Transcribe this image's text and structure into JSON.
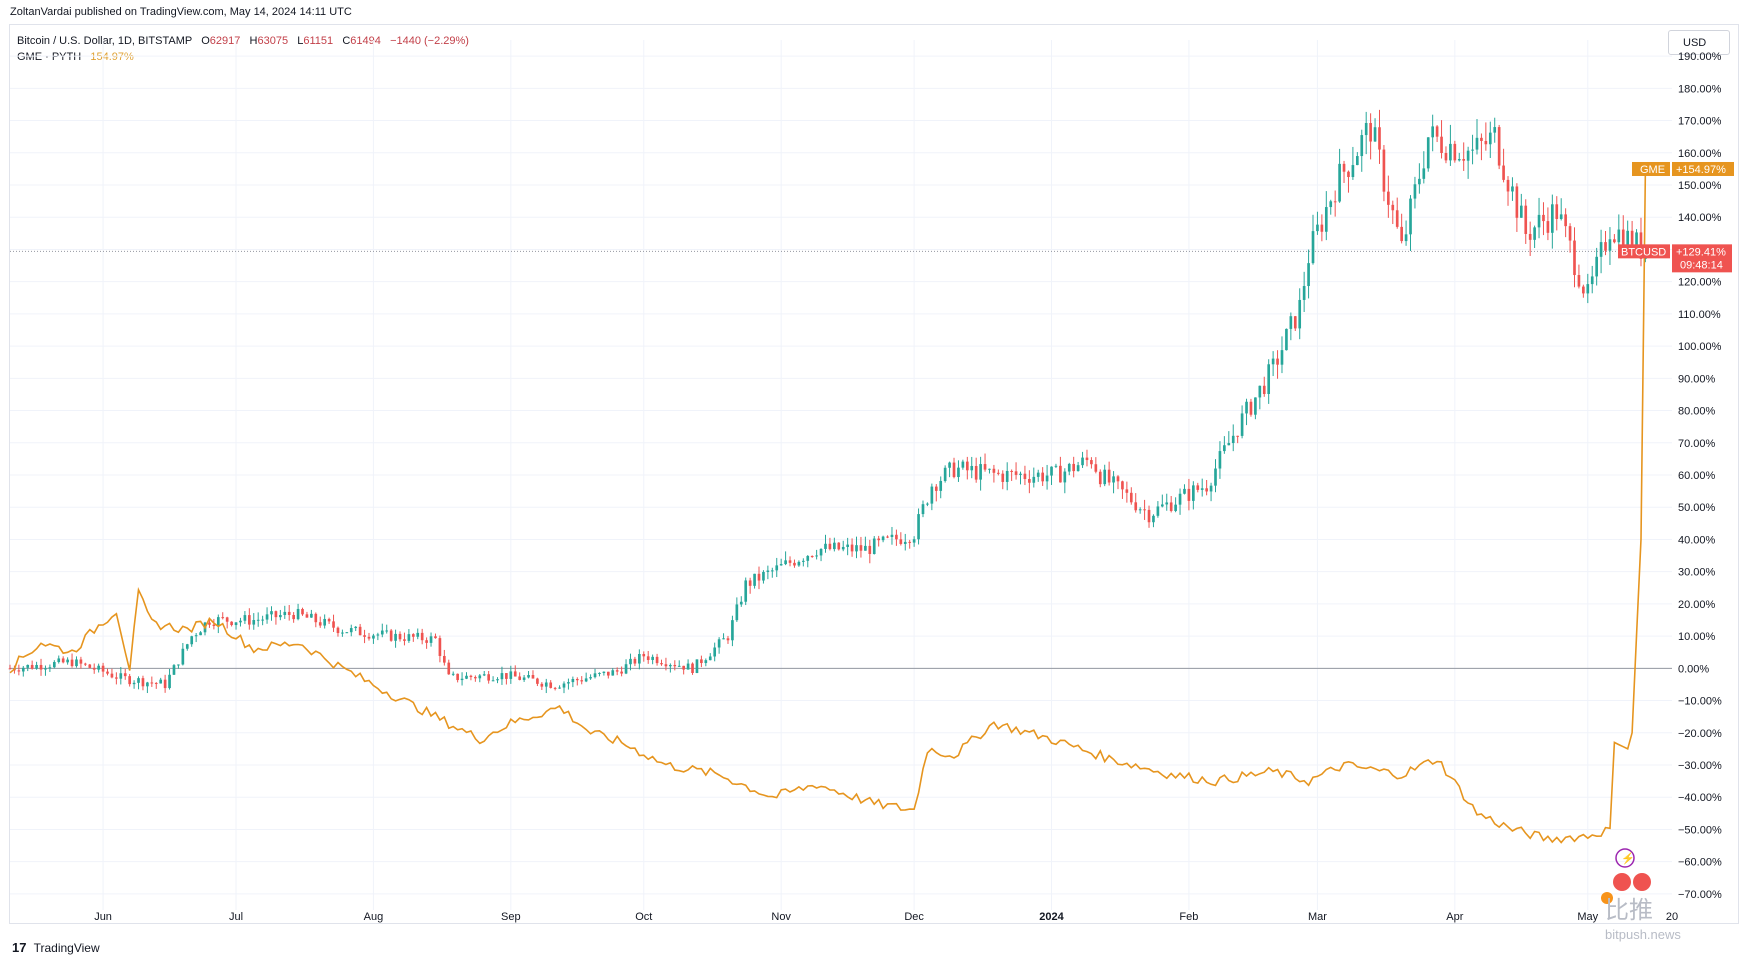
{
  "header": {
    "publish_line": "ZoltanVardai published on TradingView.com, May 14, 2024 14:11 UTC"
  },
  "legend": {
    "btc_name": "Bitcoin / U.S. Dollar, 1D, BITSTAMP",
    "open_label": "O",
    "open": "62917",
    "high_label": "H",
    "high": "63075",
    "low_label": "L",
    "low": "61151",
    "close_label": "C",
    "close": "61494",
    "change": "−1440 (−2.29%)",
    "gme_name": "GME · PYTH",
    "gme_value": "154.97%"
  },
  "currency": "USD",
  "footer": {
    "brand": "TradingView",
    "logo_glyph": "17"
  },
  "watermark": {
    "cn": "比推",
    "site": "bitpush.news"
  },
  "tags": {
    "gme_name": "GME",
    "gme_value": "+154.97%",
    "btc_name": "BTCUSD",
    "btc_value": "+129.41%",
    "btc_countdown": "09:48:14"
  },
  "colors": {
    "up": "#26a69a",
    "down": "#ef5350",
    "gme": "#e6951f",
    "btc_tag": "#ef5350",
    "grid": "#f0f3fa",
    "zero": "#9598a1"
  },
  "chart_data": {
    "type": "line",
    "y_axis": {
      "unit": "%",
      "range": [
        -75,
        195
      ],
      "ticks": [
        "190.00%",
        "180.00%",
        "170.00%",
        "160.00%",
        "150.00%",
        "140.00%",
        "130.00%",
        "120.00%",
        "110.00%",
        "100.00%",
        "90.00%",
        "80.00%",
        "70.00%",
        "60.00%",
        "50.00%",
        "40.00%",
        "30.00%",
        "20.00%",
        "10.00%",
        "0.00%",
        "−10.00%",
        "−20.00%",
        "−30.00%",
        "−40.00%",
        "−50.00%",
        "−60.00%",
        "−70.00%"
      ]
    },
    "x_axis": {
      "range": [
        "2023-05-11",
        "2024-05-20"
      ],
      "ticks": [
        {
          "label": "Jun",
          "date": "2023-06-01",
          "bold": false
        },
        {
          "label": "Jul",
          "date": "2023-07-01",
          "bold": false
        },
        {
          "label": "Aug",
          "date": "2023-08-01",
          "bold": false
        },
        {
          "label": "Sep",
          "date": "2023-09-01",
          "bold": false
        },
        {
          "label": "Oct",
          "date": "2023-10-01",
          "bold": false
        },
        {
          "label": "Nov",
          "date": "2023-11-01",
          "bold": false
        },
        {
          "label": "Dec",
          "date": "2023-12-01",
          "bold": false
        },
        {
          "label": "2024",
          "date": "2024-01-01",
          "bold": true
        },
        {
          "label": "Feb",
          "date": "2024-02-01",
          "bold": false
        },
        {
          "label": "Mar",
          "date": "2024-03-01",
          "bold": false
        },
        {
          "label": "Apr",
          "date": "2024-04-01",
          "bold": false
        },
        {
          "label": "May",
          "date": "2024-05-01",
          "bold": false
        },
        {
          "label": "20",
          "date": "2024-05-20",
          "bold": false
        }
      ]
    },
    "series": [
      {
        "name": "BTCUSD",
        "kind": "candlestick",
        "points": [
          {
            "date": "2023-05-11",
            "value": 0
          },
          {
            "date": "2023-05-18",
            "value": 1
          },
          {
            "date": "2023-05-25",
            "value": 2
          },
          {
            "date": "2023-06-01",
            "value": -1
          },
          {
            "date": "2023-06-05",
            "value": -3
          },
          {
            "date": "2023-06-15",
            "value": -5
          },
          {
            "date": "2023-06-21",
            "value": 10
          },
          {
            "date": "2023-06-25",
            "value": 15
          },
          {
            "date": "2023-07-05",
            "value": 15
          },
          {
            "date": "2023-07-14",
            "value": 17
          },
          {
            "date": "2023-07-25",
            "value": 12
          },
          {
            "date": "2023-08-05",
            "value": 10
          },
          {
            "date": "2023-08-15",
            "value": 9
          },
          {
            "date": "2023-08-18",
            "value": -3
          },
          {
            "date": "2023-08-30",
            "value": -2
          },
          {
            "date": "2023-09-11",
            "value": -5
          },
          {
            "date": "2023-09-25",
            "value": -1
          },
          {
            "date": "2023-10-01",
            "value": 4
          },
          {
            "date": "2023-10-12",
            "value": 0
          },
          {
            "date": "2023-10-20",
            "value": 10
          },
          {
            "date": "2023-10-24",
            "value": 26
          },
          {
            "date": "2023-11-09",
            "value": 37
          },
          {
            "date": "2023-11-20",
            "value": 37
          },
          {
            "date": "2023-12-01",
            "value": 42
          },
          {
            "date": "2023-12-05",
            "value": 57
          },
          {
            "date": "2023-12-10",
            "value": 62
          },
          {
            "date": "2023-12-20",
            "value": 60
          },
          {
            "date": "2024-01-02",
            "value": 60
          },
          {
            "date": "2024-01-10",
            "value": 65
          },
          {
            "date": "2024-01-12",
            "value": 60
          },
          {
            "date": "2024-01-23",
            "value": 48
          },
          {
            "date": "2024-02-05",
            "value": 57
          },
          {
            "date": "2024-02-12",
            "value": 75
          },
          {
            "date": "2024-02-20",
            "value": 93
          },
          {
            "date": "2024-02-26",
            "value": 112
          },
          {
            "date": "2024-02-28",
            "value": 128
          },
          {
            "date": "2024-03-05",
            "value": 150
          },
          {
            "date": "2024-03-13",
            "value": 168
          },
          {
            "date": "2024-03-20",
            "value": 130
          },
          {
            "date": "2024-03-26",
            "value": 165
          },
          {
            "date": "2024-04-05",
            "value": 160
          },
          {
            "date": "2024-04-10",
            "value": 165
          },
          {
            "date": "2024-04-17",
            "value": 135
          },
          {
            "date": "2024-04-24",
            "value": 142
          },
          {
            "date": "2024-05-01",
            "value": 115
          },
          {
            "date": "2024-05-06",
            "value": 137
          },
          {
            "date": "2024-05-14",
            "value": 129.41
          }
        ]
      },
      {
        "name": "GME",
        "kind": "line",
        "points": [
          {
            "date": "2023-05-11",
            "value": 0
          },
          {
            "date": "2023-05-18",
            "value": 8
          },
          {
            "date": "2023-05-25",
            "value": 5
          },
          {
            "date": "2023-05-30",
            "value": 12
          },
          {
            "date": "2023-06-04",
            "value": 18
          },
          {
            "date": "2023-06-07",
            "value": 0
          },
          {
            "date": "2023-06-09",
            "value": 23
          },
          {
            "date": "2023-06-12",
            "value": 14
          },
          {
            "date": "2023-06-20",
            "value": 12
          },
          {
            "date": "2023-06-26",
            "value": 15
          },
          {
            "date": "2023-07-05",
            "value": 6
          },
          {
            "date": "2023-07-15",
            "value": 8
          },
          {
            "date": "2023-07-25",
            "value": 0
          },
          {
            "date": "2023-08-05",
            "value": -8
          },
          {
            "date": "2023-08-15",
            "value": -15
          },
          {
            "date": "2023-08-25",
            "value": -22
          },
          {
            "date": "2023-09-01",
            "value": -17
          },
          {
            "date": "2023-09-12",
            "value": -12
          },
          {
            "date": "2023-09-19",
            "value": -20
          },
          {
            "date": "2023-09-26",
            "value": -23
          },
          {
            "date": "2023-10-06",
            "value": -30
          },
          {
            "date": "2023-10-18",
            "value": -33
          },
          {
            "date": "2023-10-30",
            "value": -40
          },
          {
            "date": "2023-11-09",
            "value": -36
          },
          {
            "date": "2023-11-22",
            "value": -42
          },
          {
            "date": "2023-12-01",
            "value": -44
          },
          {
            "date": "2023-12-04",
            "value": -25
          },
          {
            "date": "2023-12-10",
            "value": -27
          },
          {
            "date": "2023-12-19",
            "value": -17
          },
          {
            "date": "2024-01-01",
            "value": -22
          },
          {
            "date": "2024-01-14",
            "value": -28
          },
          {
            "date": "2024-01-28",
            "value": -33
          },
          {
            "date": "2024-02-07",
            "value": -35
          },
          {
            "date": "2024-02-20",
            "value": -32
          },
          {
            "date": "2024-02-28",
            "value": -35
          },
          {
            "date": "2024-03-07",
            "value": -30
          },
          {
            "date": "2024-03-20",
            "value": -33
          },
          {
            "date": "2024-03-28",
            "value": -28
          },
          {
            "date": "2024-04-06",
            "value": -45
          },
          {
            "date": "2024-04-14",
            "value": -50
          },
          {
            "date": "2024-04-22",
            "value": -53
          },
          {
            "date": "2024-05-01",
            "value": -52
          },
          {
            "date": "2024-05-06",
            "value": -50
          },
          {
            "date": "2024-05-07",
            "value": -23
          },
          {
            "date": "2024-05-10",
            "value": -25
          },
          {
            "date": "2024-05-11",
            "value": -20
          },
          {
            "date": "2024-05-13",
            "value": 40
          },
          {
            "date": "2024-05-14",
            "value": 154.97
          }
        ]
      }
    ],
    "last_value_line": 129.41,
    "grid": true,
    "legend_position": "top-left"
  }
}
